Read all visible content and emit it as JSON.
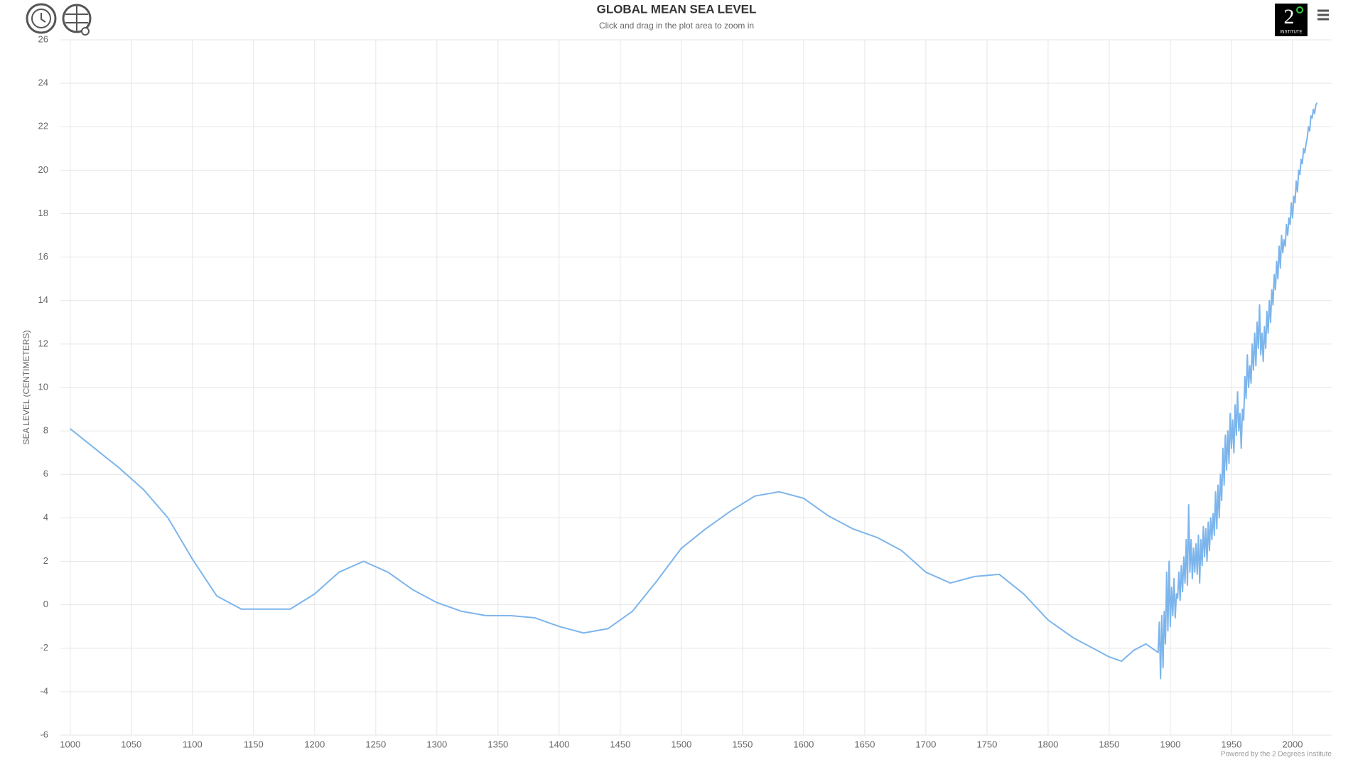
{
  "chart_data": {
    "type": "line",
    "title": "GLOBAL MEAN SEA LEVEL",
    "subtitle": "Click and drag in the plot area to zoom in",
    "y_label": "SEA LEVEL (CENTIMETERS)",
    "credit": "Powered by the 2 Degrees Institute",
    "logo": {
      "number": "2",
      "text": "INSTITUTE"
    },
    "xlim": [
      992,
      2032
    ],
    "xticks": [
      1000,
      1050,
      1100,
      1150,
      1200,
      1250,
      1300,
      1350,
      1400,
      1450,
      1500,
      1550,
      1600,
      1650,
      1700,
      1750,
      1800,
      1850,
      1900,
      1950,
      2000
    ],
    "ylim": [
      -6,
      26
    ],
    "yticks": [
      -6,
      -4,
      -2,
      0,
      2,
      4,
      6,
      8,
      10,
      12,
      14,
      16,
      18,
      20,
      22,
      24,
      26
    ],
    "grid": true,
    "x": [
      1000,
      1020,
      1040,
      1060,
      1080,
      1100,
      1120,
      1140,
      1160,
      1180,
      1200,
      1220,
      1240,
      1260,
      1280,
      1300,
      1320,
      1340,
      1360,
      1380,
      1400,
      1420,
      1440,
      1460,
      1480,
      1500,
      1520,
      1540,
      1560,
      1580,
      1600,
      1620,
      1640,
      1660,
      1680,
      1700,
      1720,
      1740,
      1760,
      1780,
      1800,
      1820,
      1830,
      1850,
      1860,
      1870,
      1880,
      1890,
      1891,
      1892,
      1893,
      1894,
      1895,
      1896,
      1897,
      1898,
      1899,
      1900,
      1901,
      1902,
      1903,
      1904,
      1905,
      1906,
      1907,
      1908,
      1909,
      1910,
      1911,
      1912,
      1913,
      1914,
      1915,
      1916,
      1917,
      1918,
      1919,
      1920,
      1921,
      1922,
      1923,
      1924,
      1925,
      1926,
      1927,
      1928,
      1929,
      1930,
      1931,
      1932,
      1933,
      1934,
      1935,
      1936,
      1937,
      1938,
      1939,
      1940,
      1941,
      1942,
      1943,
      1944,
      1945,
      1946,
      1947,
      1948,
      1949,
      1950,
      1951,
      1952,
      1953,
      1954,
      1955,
      1956,
      1957,
      1958,
      1959,
      1960,
      1961,
      1962,
      1963,
      1964,
      1965,
      1966,
      1967,
      1968,
      1969,
      1970,
      1971,
      1972,
      1973,
      1974,
      1975,
      1976,
      1977,
      1978,
      1979,
      1980,
      1981,
      1982,
      1983,
      1984,
      1985,
      1986,
      1987,
      1988,
      1989,
      1990,
      1991,
      1992,
      1993,
      1994,
      1995,
      1996,
      1997,
      1998,
      1999,
      2000,
      2001,
      2002,
      2003,
      2004,
      2005,
      2006,
      2007,
      2008,
      2009,
      2010,
      2011,
      2012,
      2013,
      2014,
      2015,
      2016,
      2017,
      2018,
      2019,
      2020
    ],
    "series": [
      {
        "color": "#7cb5ec",
        "values": [
          8.1,
          7.2,
          6.3,
          5.3,
          4.0,
          2.1,
          0.4,
          -0.2,
          -0.2,
          -0.2,
          0.5,
          1.5,
          2.0,
          1.5,
          0.7,
          0.1,
          -0.3,
          -0.5,
          -0.5,
          -0.6,
          -1.0,
          -1.3,
          -1.1,
          -0.3,
          1.1,
          2.6,
          3.5,
          4.3,
          5.0,
          5.2,
          4.9,
          4.1,
          3.5,
          3.1,
          2.5,
          1.5,
          1.0,
          1.3,
          1.4,
          0.5,
          -0.7,
          -1.5,
          -1.8,
          -2.4,
          -2.6,
          -2.1,
          -1.8,
          -2.2,
          -0.8,
          -3.4,
          -0.5,
          -2.9,
          -0.3,
          -1.8,
          1.5,
          -1.2,
          2.0,
          -1.0,
          0.8,
          -0.5,
          1.2,
          -0.6,
          0.5,
          0.3,
          1.5,
          0.2,
          1.8,
          0.6,
          2.2,
          1.0,
          3.0,
          0.9,
          4.6,
          1.5,
          3.0,
          1.2,
          2.6,
          1.5,
          2.8,
          1.4,
          3.2,
          1.0,
          3.0,
          1.8,
          3.6,
          2.2,
          3.5,
          2.0,
          3.8,
          2.5,
          4.0,
          3.0,
          4.2,
          3.2,
          5.2,
          3.5,
          5.5,
          4.0,
          6.0,
          4.8,
          7.2,
          5.5,
          7.8,
          6.2,
          8.0,
          6.5,
          8.8,
          7.2,
          8.5,
          7.0,
          9.2,
          7.8,
          9.8,
          8.0,
          8.8,
          7.2,
          9.0,
          8.5,
          10.5,
          9.5,
          11.5,
          10.0,
          11.0,
          10.2,
          12.0,
          10.8,
          12.5,
          11.0,
          13.0,
          11.8,
          13.8,
          11.5,
          12.5,
          11.2,
          12.8,
          11.8,
          13.5,
          12.5,
          14.0,
          13.0,
          14.5,
          13.8,
          15.2,
          14.5,
          15.8,
          15.0,
          16.5,
          15.5,
          17.0,
          16.2,
          16.8,
          16.5,
          17.5,
          17.0,
          17.8,
          17.5,
          18.5,
          17.8,
          18.8,
          18.5,
          19.5,
          19.0,
          20.0,
          19.8,
          20.5,
          20.3,
          21.0,
          20.8,
          21.2,
          21.5,
          22.0,
          21.8,
          22.5,
          22.4,
          22.8,
          22.6,
          23.0,
          23.1
        ]
      }
    ]
  }
}
